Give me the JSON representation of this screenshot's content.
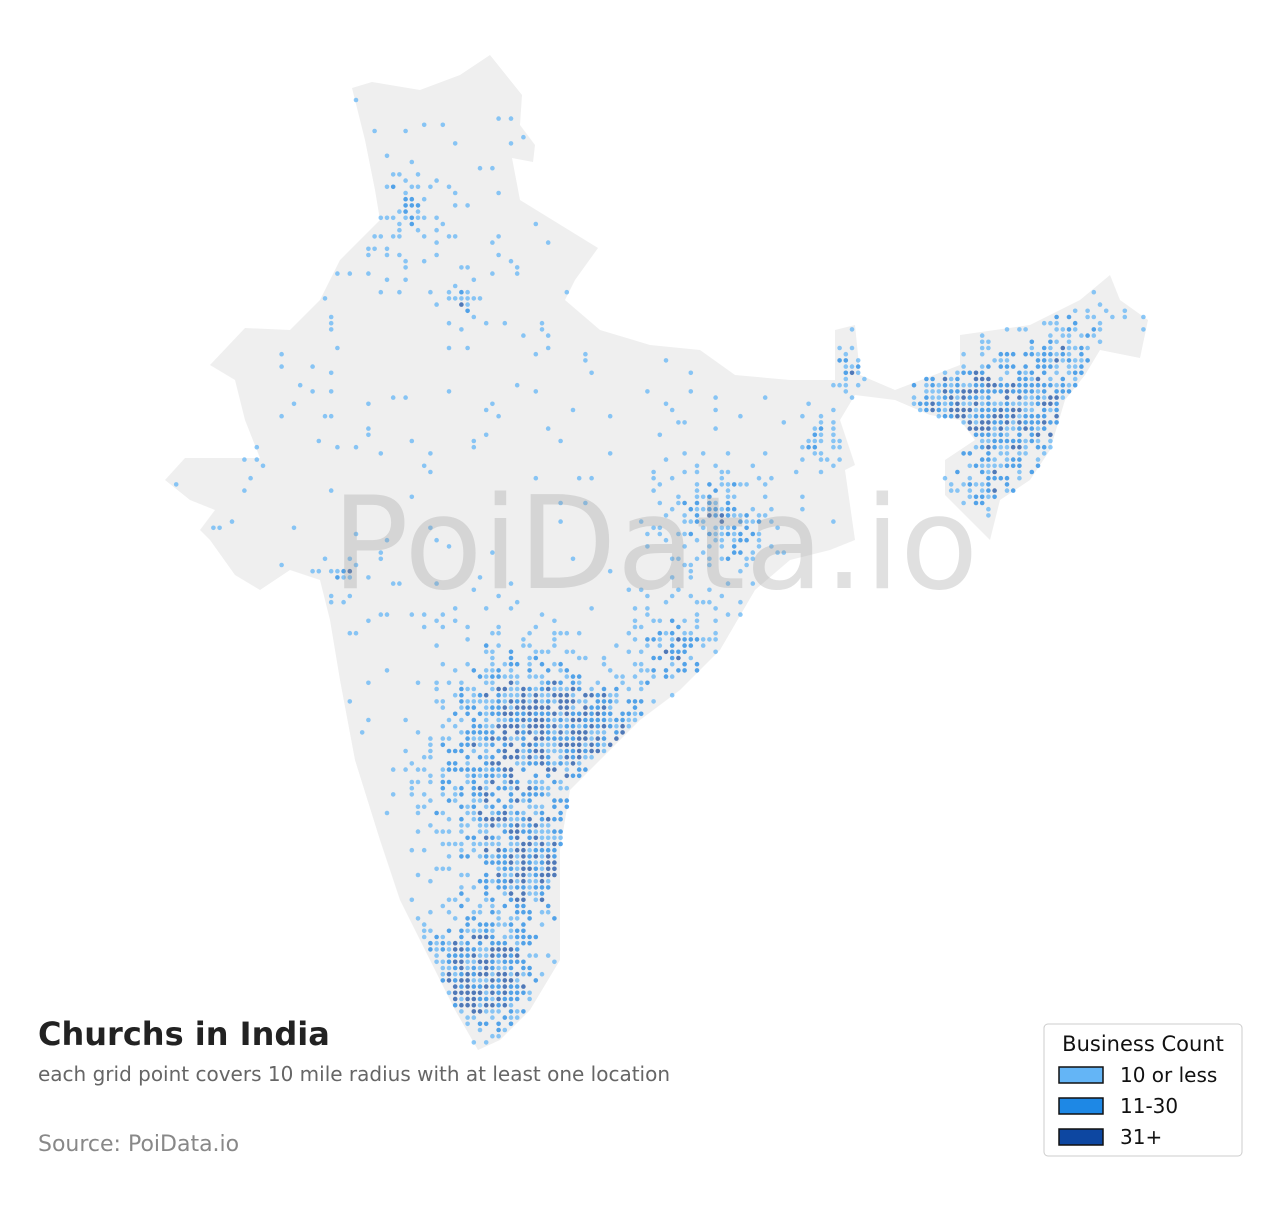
{
  "map": {
    "title": "Churchs in India",
    "subtitle": "each grid point covers 10 mile radius with at least one location",
    "source": "Source: PoiData.io",
    "watermark": "PoiData.io",
    "legend": {
      "title": "Business Count",
      "items": [
        {
          "label": "10 or less",
          "color": "#64b5f6"
        },
        {
          "label": "11-30",
          "color": "#1e88e5"
        },
        {
          "label": "31+",
          "color": "#0d47a1"
        }
      ]
    }
  }
}
